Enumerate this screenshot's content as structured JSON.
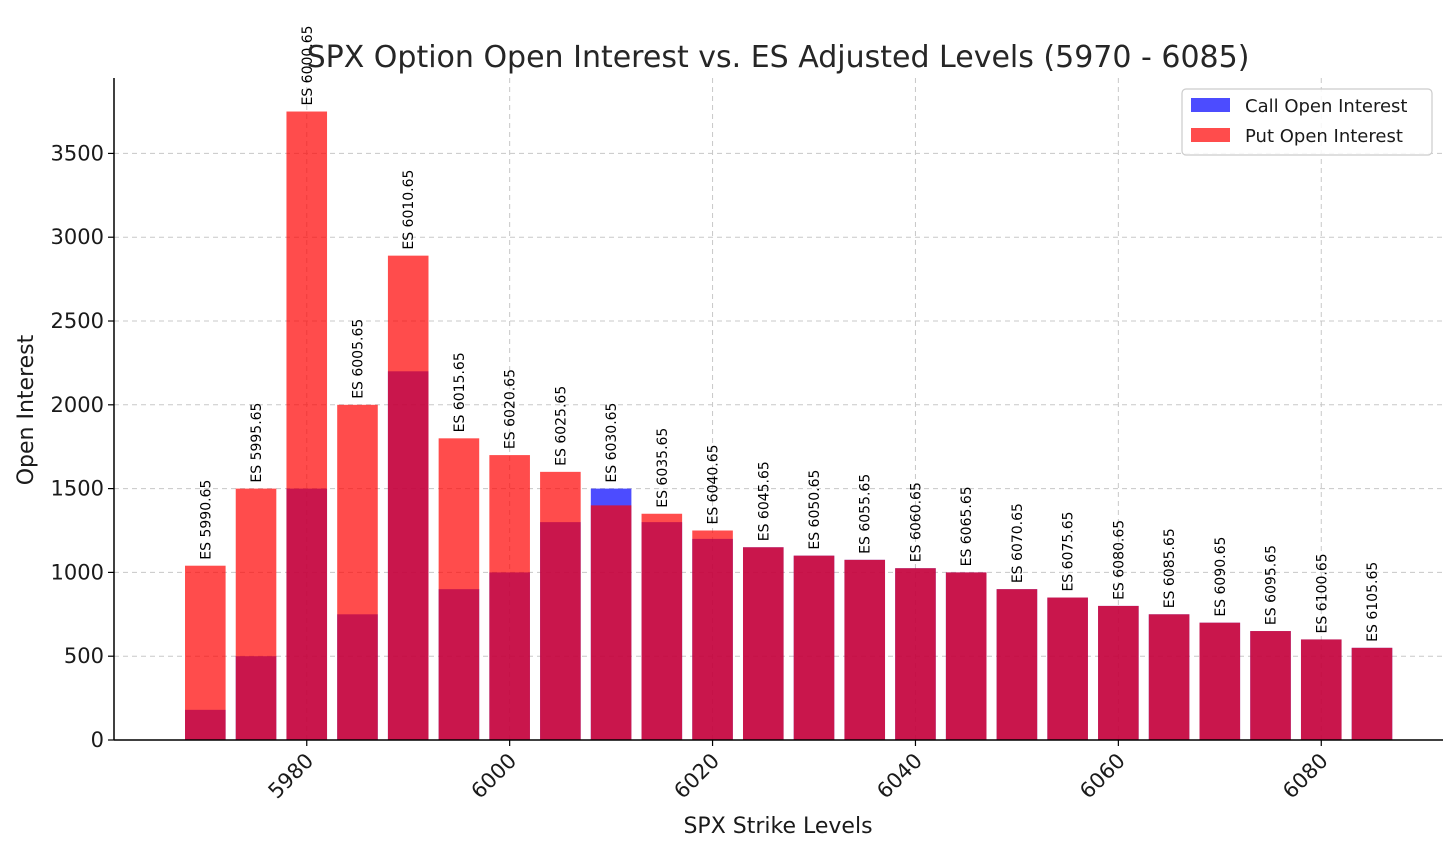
{
  "chart_data": {
    "type": "bar",
    "title": "SPX Option Open Interest vs. ES Adjusted Levels (5970 - 6085)",
    "xlabel": "SPX Strike Levels",
    "ylabel": "Open Interest",
    "xlim": [
      5961,
      6092
    ],
    "ylim": [
      0,
      3950
    ],
    "xticks": [
      5980,
      6000,
      6020,
      6040,
      6060,
      6080
    ],
    "yticks": [
      0,
      500,
      1000,
      1500,
      2000,
      2500,
      3000,
      3500
    ],
    "grid": true,
    "legend_position": "top-right",
    "bar_width": 4,
    "x": [
      5970,
      5975,
      5980,
      5985,
      5990,
      5995,
      6000,
      6005,
      6010,
      6015,
      6020,
      6025,
      6030,
      6035,
      6040,
      6045,
      6050,
      6055,
      6060,
      6065,
      6070,
      6075,
      6080,
      6085
    ],
    "series": [
      {
        "name": "Call Open Interest",
        "color": "#0000ff",
        "alpha": 0.7,
        "values": [
          180,
          500,
          1500,
          750,
          2200,
          900,
          1000,
          1300,
          1500,
          1300,
          1200,
          1150,
          1100,
          1075,
          1025,
          1000,
          900,
          850,
          800,
          750,
          700,
          650,
          600,
          550
        ]
      },
      {
        "name": "Put Open Interest",
        "color": "#ff0000",
        "alpha": 0.7,
        "values": [
          1040,
          1500,
          3750,
          2000,
          2890,
          1800,
          1700,
          1600,
          1400,
          1350,
          1250,
          1150,
          1100,
          1075,
          1025,
          1000,
          900,
          850,
          800,
          750,
          700,
          650,
          600,
          550
        ]
      }
    ],
    "annotations": [
      "ES 5990.65",
      "ES 5995.65",
      "ES 6000.65",
      "ES 6005.65",
      "ES 6010.65",
      "ES 6015.65",
      "ES 6020.65",
      "ES 6025.65",
      "ES 6030.65",
      "ES 6035.65",
      "ES 6040.65",
      "ES 6045.65",
      "ES 6050.65",
      "ES 6055.65",
      "ES 6060.65",
      "ES 6065.65",
      "ES 6070.65",
      "ES 6075.65",
      "ES 6080.65",
      "ES 6085.65",
      "ES 6090.65",
      "ES 6095.65",
      "ES 6100.65",
      "ES 6105.65"
    ]
  }
}
